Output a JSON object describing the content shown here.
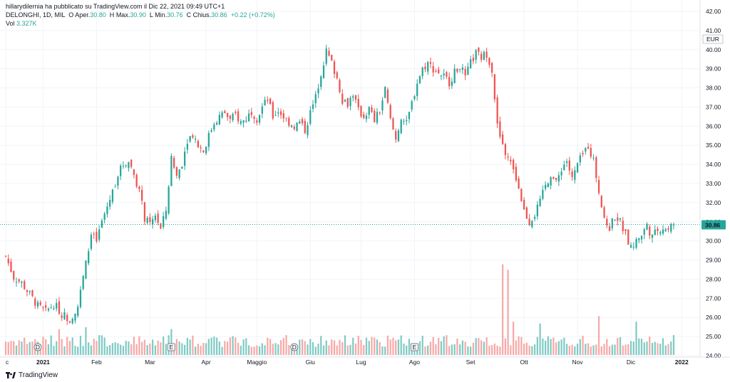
{
  "header": {
    "publisher": "hillarydilernia ha pubblicato su TradingView.com il Dic 22, 2021 09:49 UTC+1",
    "symbol": "DELONGHI, 1D, MIL",
    "open_label": "O",
    "open_text": "Aper.",
    "open_value": "30.80",
    "high_label": "H",
    "high_text": "Max.",
    "high_value": "30.90",
    "low_label": "L",
    "low_text": "Min.",
    "low_value": "30.76",
    "close_label": "C",
    "close_text": "Chius.",
    "close_value": "30.86",
    "change": "+0.22 (+0.72%)",
    "vol_label": "Vol",
    "vol_value": "3.327K"
  },
  "footer": {
    "brand": "TradingView"
  },
  "colors": {
    "up": "#26a69a",
    "down": "#ef5350",
    "vol_up": "#80cbc4",
    "vol_down": "#f7a9a7",
    "price_tag": "#26a69a"
  },
  "chart_data": {
    "type": "candlestick",
    "currency": "EUR",
    "last_price": 30.86,
    "last_price_label": "30.86",
    "ylim": [
      24.0,
      42.0
    ],
    "y_ticks": [
      "24.00",
      "25.00",
      "26.00",
      "27.00",
      "28.00",
      "29.00",
      "30.00",
      "31.00",
      "32.00",
      "33.00",
      "34.00",
      "35.00",
      "36.00",
      "37.00",
      "38.00",
      "39.00",
      "40.00",
      "41.00",
      "42.00"
    ],
    "x_labels": [
      {
        "label": "c",
        "day": 0
      },
      {
        "label": "2021",
        "day": 14
      },
      {
        "label": "Feb",
        "day": 34
      },
      {
        "label": "Mar",
        "day": 54
      },
      {
        "label": "Apr",
        "day": 75
      },
      {
        "label": "Maggio",
        "day": 94
      },
      {
        "label": "Giu",
        "day": 114
      },
      {
        "label": "Lug",
        "day": 133
      },
      {
        "label": "Ago",
        "day": 153
      },
      {
        "label": "Set",
        "day": 174
      },
      {
        "label": "Ott",
        "day": 194
      },
      {
        "label": "Nov",
        "day": 214
      },
      {
        "label": "Dic",
        "day": 234
      },
      {
        "label": "2022",
        "day": 253
      }
    ],
    "event_markers": [
      {
        "label": "D",
        "day": 12
      },
      {
        "label": "E",
        "day": 62
      },
      {
        "label": "D",
        "day": 108
      },
      {
        "label": "E",
        "day": 153
      }
    ],
    "close_path": [
      [
        0,
        29.2
      ],
      [
        3,
        28.1
      ],
      [
        6,
        27.8
      ],
      [
        9,
        27.2
      ],
      [
        12,
        26.6
      ],
      [
        15,
        26.3
      ],
      [
        18,
        26.7
      ],
      [
        21,
        26.2
      ],
      [
        24,
        25.9
      ],
      [
        27,
        26.6
      ],
      [
        30,
        28.8
      ],
      [
        32,
        30.3
      ],
      [
        34,
        30.0
      ],
      [
        36,
        31.0
      ],
      [
        38,
        31.8
      ],
      [
        40,
        32.6
      ],
      [
        42,
        33.5
      ],
      [
        44,
        34.0
      ],
      [
        46,
        34.2
      ],
      [
        48,
        33.5
      ],
      [
        50,
        32.6
      ],
      [
        52,
        31.2
      ],
      [
        54,
        30.8
      ],
      [
        56,
        31.4
      ],
      [
        58,
        30.6
      ],
      [
        60,
        31.6
      ],
      [
        62,
        34.3
      ],
      [
        64,
        33.4
      ],
      [
        66,
        34.1
      ],
      [
        68,
        35.3
      ],
      [
        70,
        35.6
      ],
      [
        72,
        35.0
      ],
      [
        74,
        34.7
      ],
      [
        76,
        35.5
      ],
      [
        78,
        36.2
      ],
      [
        80,
        36.5
      ],
      [
        82,
        36.7
      ],
      [
        84,
        36.3
      ],
      [
        86,
        36.6
      ],
      [
        88,
        36.2
      ],
      [
        90,
        36.4
      ],
      [
        92,
        36.8
      ],
      [
        94,
        36.4
      ],
      [
        96,
        37.0
      ],
      [
        98,
        37.4
      ],
      [
        100,
        36.5
      ],
      [
        102,
        36.8
      ],
      [
        104,
        36.5
      ],
      [
        106,
        36.2
      ],
      [
        108,
        36.0
      ],
      [
        110,
        36.2
      ],
      [
        112,
        35.8
      ],
      [
        114,
        36.7
      ],
      [
        116,
        37.5
      ],
      [
        118,
        38.8
      ],
      [
        120,
        39.9
      ],
      [
        122,
        39.3
      ],
      [
        124,
        38.5
      ],
      [
        126,
        37.4
      ],
      [
        128,
        37.2
      ],
      [
        130,
        37.7
      ],
      [
        132,
        36.8
      ],
      [
        134,
        36.5
      ],
      [
        136,
        36.9
      ],
      [
        138,
        36.3
      ],
      [
        140,
        36.8
      ],
      [
        142,
        37.9
      ],
      [
        144,
        36.3
      ],
      [
        146,
        35.3
      ],
      [
        148,
        36.5
      ],
      [
        150,
        36.1
      ],
      [
        152,
        37.2
      ],
      [
        154,
        38.3
      ],
      [
        156,
        39.0
      ],
      [
        158,
        39.3
      ],
      [
        160,
        39.0
      ],
      [
        162,
        38.8
      ],
      [
        164,
        38.6
      ],
      [
        166,
        38.3
      ],
      [
        168,
        38.8
      ],
      [
        170,
        39.2
      ],
      [
        172,
        38.5
      ],
      [
        174,
        39.3
      ],
      [
        176,
        39.8
      ],
      [
        178,
        39.6
      ],
      [
        180,
        39.8
      ],
      [
        182,
        39.0
      ],
      [
        184,
        36.0
      ],
      [
        186,
        34.9
      ],
      [
        188,
        34.3
      ],
      [
        190,
        33.8
      ],
      [
        192,
        32.8
      ],
      [
        194,
        31.6
      ],
      [
        196,
        31.0
      ],
      [
        198,
        31.4
      ],
      [
        200,
        32.0
      ],
      [
        202,
        32.9
      ],
      [
        204,
        33.5
      ],
      [
        206,
        33.0
      ],
      [
        208,
        33.8
      ],
      [
        210,
        34.2
      ],
      [
        212,
        33.2
      ],
      [
        214,
        34.0
      ],
      [
        216,
        34.5
      ],
      [
        218,
        35.0
      ],
      [
        220,
        34.2
      ],
      [
        222,
        32.6
      ],
      [
        224,
        31.0
      ],
      [
        226,
        30.7
      ],
      [
        228,
        31.3
      ],
      [
        230,
        31.0
      ],
      [
        232,
        30.3
      ],
      [
        234,
        29.6
      ],
      [
        236,
        30.0
      ],
      [
        238,
        30.3
      ],
      [
        240,
        30.8
      ],
      [
        242,
        30.2
      ],
      [
        244,
        30.6
      ],
      [
        246,
        30.7
      ],
      [
        248,
        30.6
      ],
      [
        250,
        30.86
      ]
    ],
    "volume_ylim": [
      0,
      25000
    ],
    "volume_spikes": [
      {
        "day": 186,
        "value": 24500
      },
      {
        "day": 188,
        "value": 23000
      },
      {
        "day": 190,
        "value": 9000
      },
      {
        "day": 200,
        "value": 8500
      },
      {
        "day": 222,
        "value": 10500
      },
      {
        "day": 236,
        "value": 9000
      },
      {
        "day": 20,
        "value": 7000
      },
      {
        "day": 30,
        "value": 7500
      },
      {
        "day": 62,
        "value": 7000
      }
    ]
  }
}
